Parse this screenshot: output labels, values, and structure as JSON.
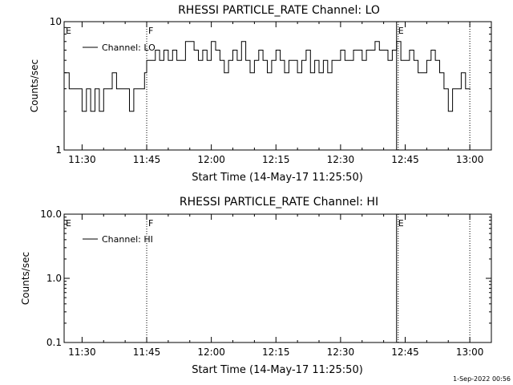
{
  "footer_timestamp": "1-Sep-2022 00:56",
  "chart_data": [
    {
      "type": "line",
      "title": "RHESSI PARTICLE_RATE Channel: LO",
      "xlabel": "Start Time (14-May-17 11:25:50)",
      "ylabel": "Counts/sec",
      "yscale": "log",
      "ylim": [
        1,
        10
      ],
      "xlim": [
        "11:25:50",
        "13:05:00"
      ],
      "ytick_labels": [
        "1",
        "10"
      ],
      "xtick_labels": [
        "11:30",
        "11:45",
        "12:00",
        "12:15",
        "12:30",
        "12:45",
        "13:00"
      ],
      "legend": {
        "placement": "top-left",
        "entries": [
          "Channel: LO"
        ]
      },
      "markers": [
        {
          "label": "E",
          "time": "11:25:50",
          "style": "none"
        },
        {
          "label": "F",
          "time": "11:45:00",
          "style": "dotted"
        },
        {
          "label": "E",
          "time": "12:43:00",
          "style": "solid"
        },
        {
          "label": "",
          "time": "13:00:00",
          "style": "dotted"
        }
      ],
      "series": [
        {
          "name": "Channel: LO",
          "x": [
            "11:26:00",
            "11:27:00",
            "11:28:00",
            "11:29:00",
            "11:30:00",
            "11:31:00",
            "11:32:00",
            "11:33:00",
            "11:34:00",
            "11:35:00",
            "11:36:00",
            "11:37:00",
            "11:38:00",
            "11:39:00",
            "11:40:00",
            "11:41:00",
            "11:42:00",
            "11:43:00",
            "11:44:00",
            "11:44:30",
            "11:45:00",
            "11:46:00",
            "11:47:00",
            "11:48:00",
            "11:49:00",
            "11:50:00",
            "11:51:00",
            "11:52:00",
            "11:53:00",
            "11:54:00",
            "11:55:00",
            "11:56:00",
            "11:57:00",
            "11:58:00",
            "11:59:00",
            "12:00:00",
            "12:01:00",
            "12:02:00",
            "12:03:00",
            "12:04:00",
            "12:05:00",
            "12:06:00",
            "12:07:00",
            "12:08:00",
            "12:09:00",
            "12:10:00",
            "12:11:00",
            "12:12:00",
            "12:13:00",
            "12:14:00",
            "12:15:00",
            "12:16:00",
            "12:17:00",
            "12:18:00",
            "12:19:00",
            "12:20:00",
            "12:21:00",
            "12:22:00",
            "12:23:00",
            "12:24:00",
            "12:25:00",
            "12:26:00",
            "12:27:00",
            "12:28:00",
            "12:29:00",
            "12:30:00",
            "12:31:00",
            "12:32:00",
            "12:33:00",
            "12:34:00",
            "12:35:00",
            "12:36:00",
            "12:37:00",
            "12:38:00",
            "12:39:00",
            "12:40:00",
            "12:41:00",
            "12:42:00",
            "12:43:00",
            "12:44:00",
            "12:45:00",
            "12:46:00",
            "12:47:00",
            "12:48:00",
            "12:49:00",
            "12:50:00",
            "12:51:00",
            "12:52:00",
            "12:53:00",
            "12:54:00",
            "12:55:00",
            "12:56:00",
            "12:57:00",
            "12:58:00",
            "12:59:00"
          ],
          "y": [
            4,
            3,
            3,
            3,
            2,
            3,
            2,
            3,
            2,
            3,
            3,
            4,
            3,
            3,
            3,
            2,
            3,
            3,
            3,
            4,
            5,
            5,
            6,
            5,
            6,
            5,
            6,
            5,
            5,
            7,
            7,
            6,
            5,
            6,
            5,
            7,
            6,
            5,
            4,
            5,
            6,
            5,
            7,
            5,
            4,
            5,
            6,
            5,
            4,
            5,
            6,
            5,
            4,
            5,
            5,
            4,
            5,
            6,
            4,
            5,
            4,
            5,
            4,
            5,
            5,
            6,
            5,
            5,
            6,
            6,
            5,
            6,
            6,
            7,
            6,
            6,
            5,
            6,
            7,
            5,
            5,
            6,
            5,
            4,
            4,
            5,
            6,
            5,
            4,
            3,
            2,
            3,
            3,
            4,
            3
          ]
        }
      ]
    },
    {
      "type": "line",
      "title": "RHESSI PARTICLE_RATE Channel: HI",
      "xlabel": "Start Time (14-May-17 11:25:50)",
      "ylabel": "Counts/sec",
      "yscale": "log",
      "ylim": [
        0.1,
        10
      ],
      "xlim": [
        "11:25:50",
        "13:05:00"
      ],
      "ytick_labels": [
        "0.1",
        "1.0",
        "10.0"
      ],
      "xtick_labels": [
        "11:30",
        "11:45",
        "12:00",
        "12:15",
        "12:30",
        "12:45",
        "13:00"
      ],
      "legend": {
        "placement": "top-left",
        "entries": [
          "Channel: HI"
        ]
      },
      "markers": [
        {
          "label": "E",
          "time": "11:25:50",
          "style": "none"
        },
        {
          "label": "F",
          "time": "11:45:00",
          "style": "dotted"
        },
        {
          "label": "E",
          "time": "12:43:00",
          "style": "solid"
        },
        {
          "label": "",
          "time": "13:00:00",
          "style": "dotted"
        }
      ],
      "series": [
        {
          "name": "Channel: HI",
          "x": [],
          "y": []
        }
      ]
    }
  ]
}
